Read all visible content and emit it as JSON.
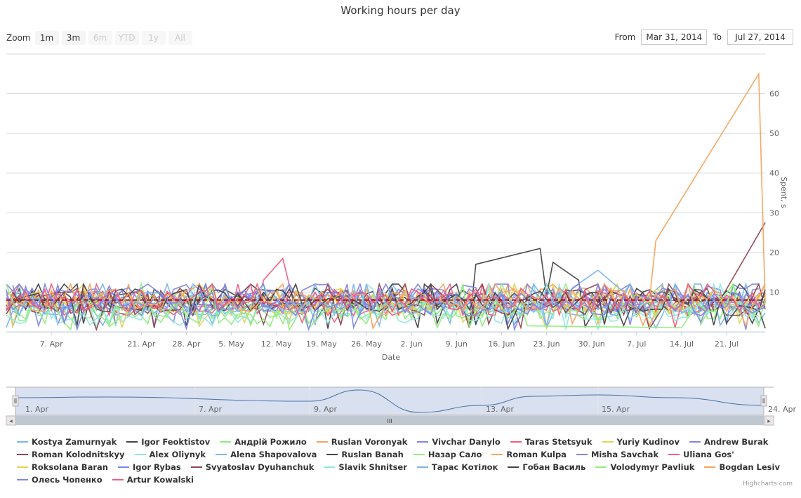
{
  "title": "Working hours per day",
  "zoom": {
    "label": "Zoom",
    "buttons": [
      {
        "label": "1m",
        "enabled": true
      },
      {
        "label": "3m",
        "enabled": true
      },
      {
        "label": "6m",
        "enabled": false
      },
      {
        "label": "YTD",
        "enabled": false
      },
      {
        "label": "1y",
        "enabled": false
      },
      {
        "label": "All",
        "enabled": false
      }
    ]
  },
  "range": {
    "from_label": "From",
    "from_value": "Mar 31, 2014",
    "to_label": "To",
    "to_value": "Jul 27, 2014"
  },
  "credits": "Highcharts.com",
  "navigator": {
    "labels": [
      "1. Apr",
      "7. Apr",
      "9. Apr",
      "13. Apr",
      "15. Apr",
      "24. Apr"
    ],
    "scroll_grip": "III",
    "left_arrow": "◂",
    "right_arrow": "▸"
  },
  "chart_data": {
    "type": "line",
    "title": "Working hours per day",
    "xlabel": "Date",
    "ylabel": "Spent, s",
    "x_range": [
      "2014-03-31",
      "2014-07-27"
    ],
    "ylim": [
      0,
      70
    ],
    "y_ticks": [
      10,
      20,
      30,
      40,
      50,
      60
    ],
    "x_ticks": [
      "7. Apr",
      "21. Apr",
      "28. Apr",
      "5. May",
      "12. May",
      "19. May",
      "26. May",
      "2. Jun",
      "9. Jun",
      "16. Jun",
      "23. Jun",
      "30. Jun",
      "7. Jul",
      "14. Jul",
      "21. Jul"
    ],
    "reference_line": {
      "value": 8,
      "color": "#a00000",
      "style": "dashed"
    },
    "grid": true,
    "legend_position": "bottom",
    "series": [
      {
        "name": "Kostya Zamurnyak",
        "color": "#7cb5ec",
        "base": 7
      },
      {
        "name": "Igor Feoktistov",
        "color": "#434348",
        "base": 8
      },
      {
        "name": "Андрій Рожило",
        "color": "#90ed7d",
        "base": 6
      },
      {
        "name": "Ruslan Voronyak",
        "color": "#f7a35c",
        "base": 8
      },
      {
        "name": "Vivchar Danylo",
        "color": "#8085e9",
        "base": 8
      },
      {
        "name": "Taras Stetsyuk",
        "color": "#f15c80",
        "base": 7
      },
      {
        "name": "Yuriy Kudinov",
        "color": "#e4d354",
        "base": 7
      },
      {
        "name": "Andrew Burak",
        "color": "#8085e8",
        "base": 9
      },
      {
        "name": "Roman Kolodnitskyy",
        "color": "#8d4653",
        "base": 8
      },
      {
        "name": "Alex Oliynyk",
        "color": "#91e8e1",
        "base": 6
      },
      {
        "name": "Alena Shapovalova",
        "color": "#7cb5ec",
        "base": 7
      },
      {
        "name": "Ruslan Banah",
        "color": "#434348",
        "base": 8
      },
      {
        "name": "Назар Сало",
        "color": "#90ed7d",
        "base": 6
      },
      {
        "name": "Roman Kulpa",
        "color": "#f7a35c",
        "base": 8
      },
      {
        "name": "Misha Savchak",
        "color": "#8085e9",
        "base": 8
      },
      {
        "name": "Uliana Gos'",
        "color": "#f15c80",
        "base": 7
      },
      {
        "name": "Roksolana Baran",
        "color": "#e4d354",
        "base": 8
      },
      {
        "name": "Igor Rybas",
        "color": "#8085e8",
        "base": 8
      },
      {
        "name": "Svyatoslav Dyuhanchuk",
        "color": "#8d4653",
        "base": 7
      },
      {
        "name": "Slavik Shnitser",
        "color": "#91e8e1",
        "base": 5
      },
      {
        "name": "Тарас Котілок",
        "color": "#7cb5ec",
        "base": 7
      },
      {
        "name": "Гобан Василь",
        "color": "#434348",
        "base": 8
      },
      {
        "name": "Volodymyr Pavliuk",
        "color": "#90ed7d",
        "base": 5
      },
      {
        "name": "Bogdan Lesiv",
        "color": "#f7a35c",
        "base": 8
      },
      {
        "name": "Олесь Чопенко",
        "color": "#8085e9",
        "base": 7
      },
      {
        "name": "Artur Kowalski",
        "color": "#f15c80",
        "base": 8
      }
    ],
    "highlight_points": [
      {
        "series": "Roman Kulpa",
        "points": [
          [
            "2014-07-09",
            8
          ],
          [
            "2014-07-10",
            23
          ],
          [
            "2014-07-26",
            65
          ]
        ]
      },
      {
        "series": "Roman Kolodnitskyy",
        "points": [
          [
            "2014-07-20",
            8
          ],
          [
            "2014-07-27",
            27.5
          ]
        ]
      },
      {
        "series": "Igor Feoktistov",
        "points": [
          [
            "2014-06-12",
            17
          ],
          [
            "2014-06-22",
            21
          ],
          [
            "2014-06-23",
            9
          ],
          [
            "2014-06-24",
            17.5
          ],
          [
            "2014-06-28",
            13
          ]
        ]
      },
      {
        "series": "Alena Shapovalova",
        "points": [
          [
            "2014-06-27",
            11
          ],
          [
            "2014-07-01",
            15.5
          ],
          [
            "2014-07-05",
            10
          ]
        ]
      },
      {
        "series": "Taras Stetsyuk",
        "points": [
          [
            "2014-05-10",
            13
          ],
          [
            "2014-05-13",
            18.5
          ],
          [
            "2014-05-15",
            5
          ]
        ]
      },
      {
        "series": "Volodymyr Pavliuk",
        "points": [
          [
            "2014-06-20",
            1.5
          ],
          [
            "2014-07-14",
            1
          ]
        ]
      }
    ]
  }
}
